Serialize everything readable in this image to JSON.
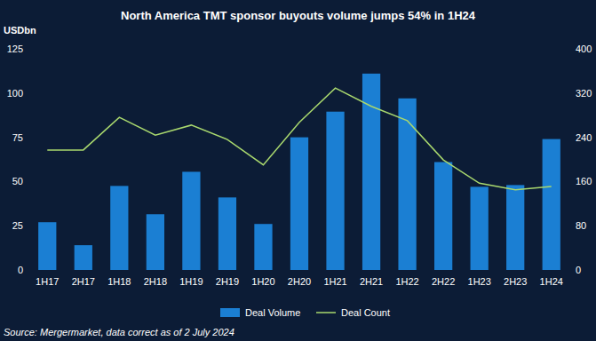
{
  "chart_data": {
    "type": "bar",
    "title": "North America TMT sponsor buyouts volume jumps 54% in 1H24",
    "y_label": "USDbn",
    "source": "Source: Mergermarket, data correct as of 2 July 2024",
    "categories": [
      "1H17",
      "2H17",
      "1H18",
      "2H18",
      "1H19",
      "2H19",
      "1H20",
      "2H20",
      "1H21",
      "2H21",
      "1H22",
      "2H22",
      "1H23",
      "2H23",
      "1H24"
    ],
    "series": [
      {
        "name": "Deal Volume",
        "type": "bar",
        "color": "#1b7fd3",
        "axis": "y",
        "values": [
          27,
          14,
          47.5,
          31.5,
          55.5,
          41,
          26,
          75,
          89.5,
          111,
          97,
          61,
          47,
          48,
          74
        ]
      },
      {
        "name": "Deal Count",
        "type": "line",
        "color": "#a9d86e",
        "axis": "y2",
        "values": [
          217,
          217,
          276,
          244,
          262,
          236,
          190,
          267,
          329,
          296,
          270,
          199,
          157,
          145,
          151
        ]
      }
    ],
    "ylim": [
      0,
      125
    ],
    "yticks": [
      0,
      25,
      50,
      75,
      100,
      125
    ],
    "y2lim": [
      0,
      400
    ],
    "y2ticks": [
      0,
      80,
      160,
      240,
      320,
      400
    ],
    "grid": false,
    "legend": "bottom"
  }
}
